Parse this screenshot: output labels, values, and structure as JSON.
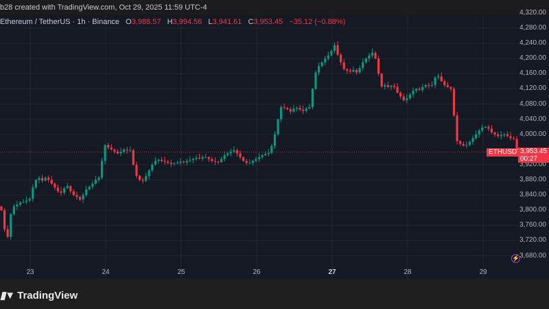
{
  "header": {
    "credit": "b28 created with TradingView.com, Oct 29, 2025 11:59 UTC-4"
  },
  "legend": {
    "symbol": "Ethereum / TetherUS · 1h · Binance",
    "open_label": "O",
    "open": "3,988.57",
    "high_label": "H",
    "high": "3,994.56",
    "low_label": "L",
    "low": "3,941.61",
    "close_label": "C",
    "close": "3,953.45",
    "change": "−35.12 (−0.88%)"
  },
  "colors": {
    "up": "#089981",
    "down": "#f23645",
    "background": "#151924",
    "grid": "#232735"
  },
  "price_axis": {
    "labels": [
      "4,320.00",
      "4,280.00",
      "4,240.00",
      "4,200.00",
      "4,160.00",
      "4,120.00",
      "4,080.00",
      "4,040.00",
      "4,000.00",
      "3,920.00",
      "3,880.00",
      "3,840.00",
      "3,800.00",
      "3,760.00",
      "3,720.00",
      "3,680.00"
    ]
  },
  "date_axis": {
    "labels": [
      "23",
      "24",
      "25",
      "26",
      "27",
      "28",
      "29"
    ]
  },
  "last_price": {
    "symbol": "ETHUSDT",
    "price": "3,953.45",
    "countdown": "00:27",
    "value": 3953.45
  },
  "icons": {
    "alert": "lightning-icon"
  },
  "footer": {
    "brand": "TradingView",
    "logo_mark": "17"
  },
  "chart_data": {
    "type": "candlestick",
    "interval": "1h",
    "ylim": [
      3670,
      4330
    ],
    "grid": true,
    "first_open": 3810,
    "closes": [
      3800,
      3750,
      3730,
      3790,
      3810,
      3815,
      3820,
      3822,
      3825,
      3830,
      3860,
      3880,
      3885,
      3878,
      3886,
      3880,
      3870,
      3860,
      3850,
      3846,
      3858,
      3864,
      3850,
      3840,
      3835,
      3828,
      3840,
      3855,
      3862,
      3870,
      3880,
      3886,
      3930,
      3972,
      3965,
      3960,
      3955,
      3950,
      3954,
      3960,
      3958,
      3958,
      3920,
      3891,
      3880,
      3878,
      3890,
      3905,
      3920,
      3930,
      3933,
      3930,
      3928,
      3925,
      3922,
      3924,
      3925,
      3928,
      3926,
      3930,
      3932,
      3935,
      3938,
      3936,
      3940,
      3940,
      3935,
      3930,
      3928,
      3927,
      3935,
      3945,
      3950,
      3955,
      3958,
      3950,
      3940,
      3930,
      3925,
      3925,
      3930,
      3935,
      3940,
      3945,
      3948,
      3951,
      3970,
      4000,
      4040,
      4072,
      4070,
      4066,
      4060,
      4068,
      4070,
      4065,
      4062,
      4068,
      4072,
      4120,
      4163,
      4180,
      4190,
      4200,
      4208,
      4220,
      4235,
      4210,
      4190,
      4172,
      4168,
      4165,
      4170,
      4163,
      4175,
      4190,
      4200,
      4208,
      4215,
      4200,
      4160,
      4126,
      4130,
      4125,
      4128,
      4125,
      4110,
      4100,
      4090,
      4095,
      4105,
      4115,
      4120,
      4117,
      4125,
      4130,
      4128,
      4130,
      4150,
      4153,
      4140,
      4130,
      4125,
      4120,
      4050,
      3982,
      3975,
      3970,
      3972,
      3980,
      3990,
      4000,
      4010,
      4018,
      4020,
      4015,
      4005,
      4000,
      3995,
      3998,
      4000,
      3995,
      3990,
      3988,
      3953
    ]
  }
}
